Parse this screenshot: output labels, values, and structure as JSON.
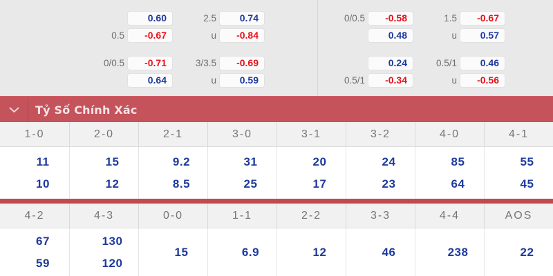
{
  "colors": {
    "panel_bg": "#e9e9e9",
    "panel_divider": "#d5d5d5",
    "box_bg": "#fbfbfb",
    "label": "#6e6e6e",
    "positive": "#1e3a9e",
    "negative": "#e8121b",
    "band_bg": "#c4535c",
    "band_top": "#ce5a61",
    "band_text": "#f7e4e5",
    "band_divider": "#ae4850",
    "header_bg": "#f1f1f1",
    "header_text": "#757575",
    "separator": "#c14950",
    "col_divider": "#d9d9d9",
    "col_divider_light": "#e4e4e4"
  },
  "top_odds": {
    "groups": [
      {
        "markets": [
          {
            "rows": [
              {
                "pairs": [
                  {
                    "label": "",
                    "value": "0.60"
                  },
                  {
                    "label": "2.5",
                    "value": "0.74"
                  }
                ]
              },
              {
                "pairs": [
                  {
                    "label": "0.5",
                    "value": "-0.67"
                  },
                  {
                    "label": "u",
                    "value": "-0.84"
                  }
                ]
              }
            ]
          },
          {
            "rows": [
              {
                "pairs": [
                  {
                    "label": "0/0.5",
                    "value": "-0.71"
                  },
                  {
                    "label": "3/3.5",
                    "value": "-0.69"
                  }
                ]
              },
              {
                "pairs": [
                  {
                    "label": "",
                    "value": "0.64"
                  },
                  {
                    "label": "u",
                    "value": "0.59"
                  }
                ]
              }
            ]
          }
        ]
      },
      {
        "markets": [
          {
            "rows": [
              {
                "pairs": [
                  {
                    "label": "0/0.5",
                    "value": "-0.58"
                  },
                  {
                    "label": "1.5",
                    "value": "-0.67"
                  }
                ]
              },
              {
                "pairs": [
                  {
                    "label": "",
                    "value": "0.48"
                  },
                  {
                    "label": "u",
                    "value": "0.57"
                  }
                ]
              }
            ]
          },
          {
            "rows": [
              {
                "pairs": [
                  {
                    "label": "",
                    "value": "0.24"
                  },
                  {
                    "label": "0.5/1",
                    "value": "0.46"
                  }
                ]
              },
              {
                "pairs": [
                  {
                    "label": "0.5/1",
                    "value": "-0.34"
                  },
                  {
                    "label": "u",
                    "value": "-0.56"
                  }
                ]
              }
            ]
          }
        ]
      }
    ]
  },
  "section_header": {
    "title": "Tỷ Số Chính Xác",
    "icon": "chevron-down"
  },
  "score_table": {
    "sections": [
      {
        "columns": [
          {
            "score": "1-0",
            "odds": [
              "11",
              "10"
            ]
          },
          {
            "score": "2-0",
            "odds": [
              "15",
              "12"
            ]
          },
          {
            "score": "2-1",
            "odds": [
              "9.2",
              "8.5"
            ]
          },
          {
            "score": "3-0",
            "odds": [
              "31",
              "25"
            ]
          },
          {
            "score": "3-1",
            "odds": [
              "20",
              "17"
            ]
          },
          {
            "score": "3-2",
            "odds": [
              "24",
              "23"
            ]
          },
          {
            "score": "4-0",
            "odds": [
              "85",
              "64"
            ]
          },
          {
            "score": "4-1",
            "odds": [
              "55",
              "45"
            ]
          }
        ]
      },
      {
        "columns": [
          {
            "score": "4-2",
            "odds": [
              "67",
              "59"
            ]
          },
          {
            "score": "4-3",
            "odds": [
              "130",
              "120"
            ]
          },
          {
            "score": "0-0",
            "odds": [
              "15"
            ]
          },
          {
            "score": "1-1",
            "odds": [
              "6.9"
            ]
          },
          {
            "score": "2-2",
            "odds": [
              "12"
            ]
          },
          {
            "score": "3-3",
            "odds": [
              "46"
            ]
          },
          {
            "score": "4-4",
            "odds": [
              "238"
            ]
          },
          {
            "score": "AOS",
            "odds": [
              "22"
            ]
          }
        ]
      }
    ]
  }
}
